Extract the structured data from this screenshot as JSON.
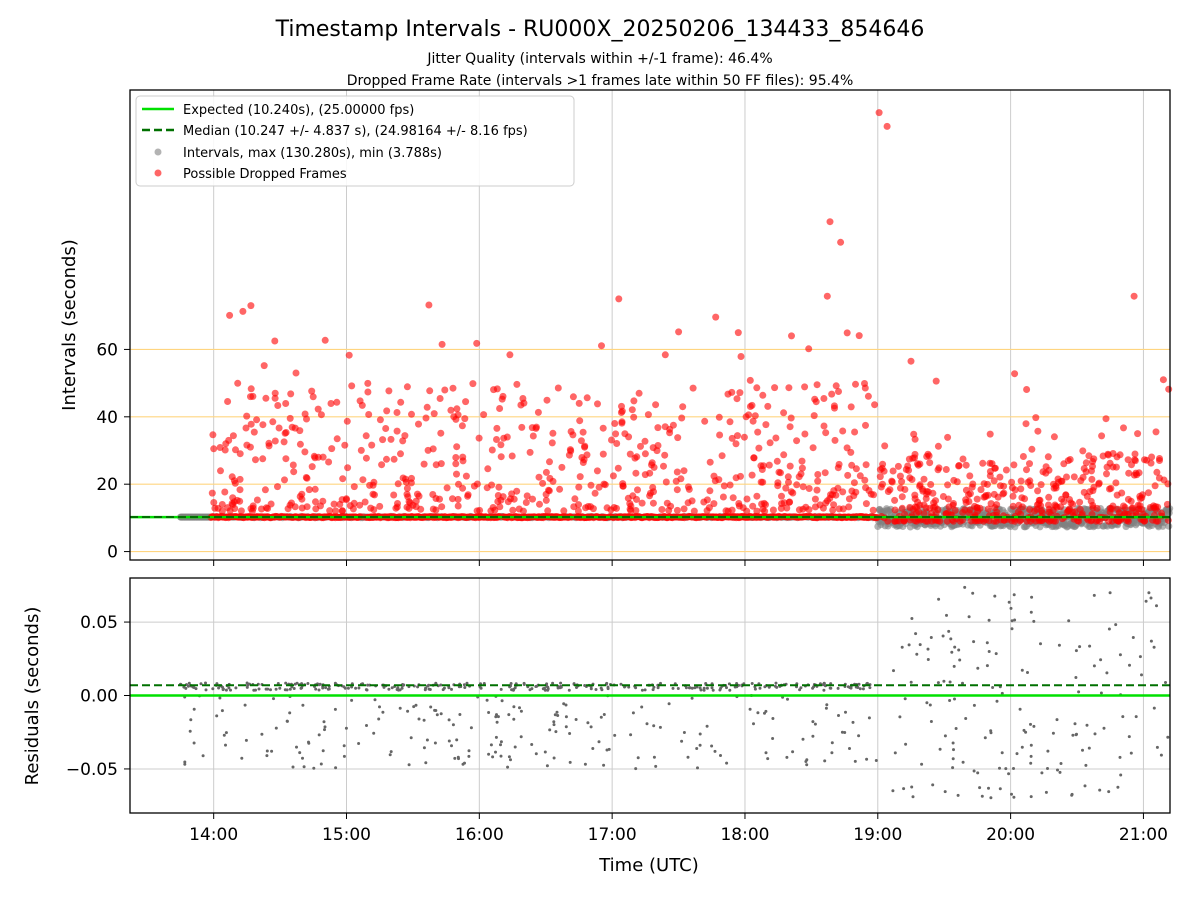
{
  "chart_data": {
    "type": "scatter",
    "title": "Timestamp Intervals - RU000X_20250206_134433_854646",
    "subtitle_lines": [
      "Jitter Quality (intervals within +/-1 frame): 46.4%",
      "Dropped Frame Rate (intervals >1 frames late within 50 FF files): 95.4%"
    ],
    "xlabel": "Time (UTC)",
    "xlim_hours": [
      13.37,
      21.2
    ],
    "x_ticks": [
      14,
      15,
      16,
      17,
      18,
      19,
      20,
      21
    ],
    "x_tick_labels": [
      "14:00",
      "15:00",
      "16:00",
      "17:00",
      "18:00",
      "19:00",
      "20:00",
      "21:00"
    ],
    "top_panel": {
      "ylabel": "Intervals (seconds)",
      "ylim": [
        -2.5,
        137
      ],
      "y_ticks": [
        0,
        20,
        40,
        60
      ],
      "y_tick_labels": [
        "0",
        "20",
        "40",
        "60"
      ],
      "reference_lines_y": [
        0,
        20,
        40,
        60
      ],
      "reference_line_color": "#ffd580",
      "expected_line": {
        "label": "Expected (10.240s), (25.00000 fps)",
        "y": 10.24,
        "color": "#00e000"
      },
      "median_line": {
        "label": "Median (10.247 +/- 4.837 s), (24.98164 +/- 8.16 fps)",
        "y": 10.247,
        "color": "#007000"
      },
      "intervals_series": {
        "label": "Intervals, max (130.280s), min (3.788s)",
        "color": "#808080",
        "max": 130.28,
        "min": 3.788
      },
      "dropped_series": {
        "label": "Possible Dropped Frames",
        "color": "#ff0000"
      },
      "outliers_dropped": [
        [
          14.12,
          70.1
        ],
        [
          14.22,
          71.3
        ],
        [
          14.28,
          73.0
        ],
        [
          14.38,
          55.2
        ],
        [
          14.46,
          62.5
        ],
        [
          14.58,
          46.8
        ],
        [
          14.62,
          53.0
        ],
        [
          14.84,
          62.7
        ],
        [
          15.02,
          58.3
        ],
        [
          15.62,
          73.2
        ],
        [
          15.72,
          61.5
        ],
        [
          15.98,
          61.8
        ],
        [
          16.23,
          58.4
        ],
        [
          16.92,
          61.1
        ],
        [
          17.05,
          75.0
        ],
        [
          17.4,
          58.4
        ],
        [
          17.5,
          65.2
        ],
        [
          17.78,
          69.6
        ],
        [
          17.95,
          65.0
        ],
        [
          17.97,
          57.9
        ],
        [
          18.04,
          50.8
        ],
        [
          18.35,
          64.0
        ],
        [
          18.48,
          60.2
        ],
        [
          18.62,
          75.8
        ],
        [
          18.64,
          97.9
        ],
        [
          18.72,
          91.8
        ],
        [
          18.77,
          64.9
        ],
        [
          18.86,
          64.1
        ],
        [
          18.9,
          49.9
        ],
        [
          19.01,
          130.3
        ],
        [
          19.07,
          126.2
        ],
        [
          19.25,
          56.5
        ],
        [
          19.44,
          50.6
        ],
        [
          20.03,
          52.8
        ],
        [
          20.12,
          48.1
        ],
        [
          20.85,
          36.7
        ],
        [
          20.93,
          75.8
        ],
        [
          21.15,
          51.0
        ],
        [
          21.19,
          48.2
        ]
      ]
    },
    "bottom_panel": {
      "ylabel": "Residuals (seconds)",
      "ylim": [
        -0.08,
        0.08
      ],
      "y_ticks": [
        -0.05,
        0.0,
        0.05
      ],
      "y_tick_labels": [
        "−0.05",
        "0.00",
        "0.05"
      ],
      "expected_line_y": 0.0,
      "median_line_y": 0.007,
      "points_color": "#666666"
    }
  }
}
